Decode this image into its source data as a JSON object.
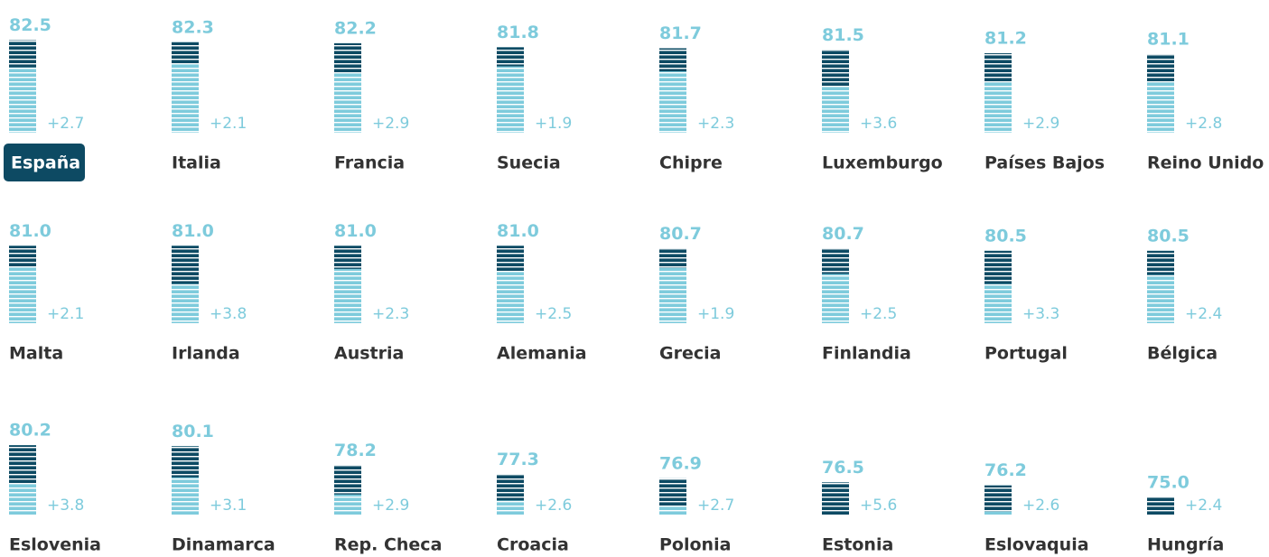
{
  "chart_data": {
    "type": "striped-bars",
    "categories": [
      "España",
      "Italia",
      "Francia",
      "Suecia",
      "Chipre",
      "Luxemburgo",
      "Países Bajos",
      "Reino Unido",
      "Malta",
      "Irlanda",
      "Austria",
      "Alemania",
      "Grecia",
      "Finlandia",
      "Portugal",
      "Bélgica",
      "Eslovenia",
      "Dinamarca",
      "Rep. Checa",
      "Croacia",
      "Polonia",
      "Estonia",
      "Eslovaquia",
      "Hungría"
    ],
    "values": [
      82.5,
      82.3,
      82.2,
      81.8,
      81.7,
      81.5,
      81.2,
      81.1,
      81.0,
      81.0,
      81.0,
      81.0,
      80.7,
      80.7,
      80.5,
      80.5,
      80.2,
      80.1,
      78.2,
      77.3,
      76.9,
      76.5,
      76.2,
      75.0
    ],
    "value_labels": [
      "82.5",
      "82.3",
      "82.2",
      "81.8",
      "81.7",
      "81.5",
      "81.2",
      "81.1",
      "81.0",
      "81.0",
      "81.0",
      "81.0",
      "80.7",
      "80.7",
      "80.5",
      "80.5",
      "80.2",
      "80.1",
      "78.2",
      "77.3",
      "76.9",
      "76.5",
      "76.2",
      "75.0"
    ],
    "changes": [
      2.7,
      2.1,
      2.9,
      1.9,
      2.3,
      3.6,
      2.9,
      2.8,
      2.1,
      3.8,
      2.3,
      2.5,
      1.9,
      2.5,
      3.3,
      2.4,
      3.8,
      3.1,
      2.9,
      2.6,
      2.7,
      5.6,
      2.6,
      2.4
    ],
    "change_labels": [
      "+2.7",
      "+2.1",
      "+2.9",
      "+1.9",
      "+2.3",
      "+3.6",
      "+2.9",
      "+2.8",
      "+2.1",
      "+3.8",
      "+2.3",
      "+2.5",
      "+1.9",
      "+2.5",
      "+3.3",
      "+2.4",
      "+3.8",
      "+3.1",
      "+2.9",
      "+2.6",
      "+2.7",
      "+5.6",
      "+2.6",
      "+2.4"
    ],
    "color": "#7ecbdc",
    "change_color": "#0d4a63",
    "ylim": [
      73.3,
      83
    ]
  }
}
